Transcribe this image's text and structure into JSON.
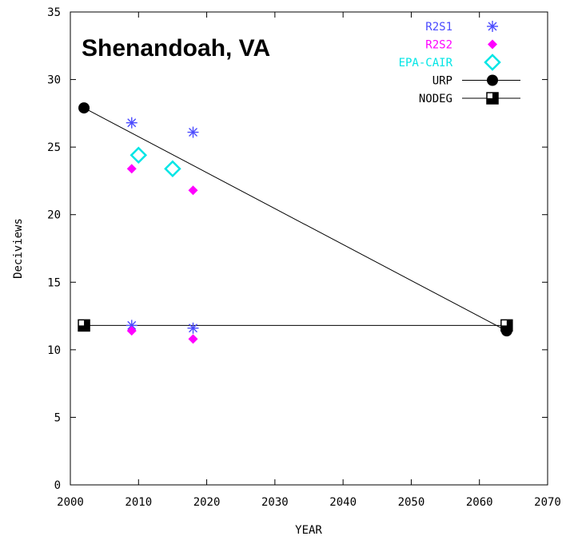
{
  "chart_data": {
    "type": "scatter",
    "title": "Shenandoah, VA",
    "xlabel": "YEAR",
    "ylabel": "Deciviews",
    "xlim": [
      2000,
      2070
    ],
    "ylim": [
      0,
      35
    ],
    "x_ticks": [
      "2000",
      "2010",
      "2020",
      "2030",
      "2040",
      "2050",
      "2060",
      "2070"
    ],
    "y_ticks": [
      "0",
      "5",
      "10",
      "15",
      "20",
      "25",
      "30",
      "35"
    ],
    "grid": false,
    "legend_position": "top-right",
    "series": [
      {
        "name": "R2S1",
        "marker": "asterisk",
        "color": "#4b4bff",
        "points": [
          [
            2009,
            26.8
          ],
          [
            2018,
            26.1
          ],
          [
            2009,
            11.8
          ],
          [
            2018,
            11.6
          ]
        ]
      },
      {
        "name": "R2S2",
        "marker": "diamond",
        "color": "#ff00ff",
        "points": [
          [
            2009,
            23.4
          ],
          [
            2018,
            21.8
          ],
          [
            2009,
            11.4
          ],
          [
            2018,
            10.8
          ]
        ]
      },
      {
        "name": "EPA-CAIR",
        "marker": "diamond-open",
        "color": "#00e5e5",
        "points": [
          [
            2010,
            24.4
          ],
          [
            2015,
            23.4
          ]
        ]
      },
      {
        "name": "URP",
        "marker": "circle-line",
        "color": "#000000",
        "points": [
          [
            2002,
            27.9
          ],
          [
            2064,
            11.4
          ]
        ]
      },
      {
        "name": "NODEG",
        "marker": "half-square-line",
        "color": "#000000",
        "points": [
          [
            2002,
            11.8
          ],
          [
            2064,
            11.8
          ]
        ]
      }
    ]
  }
}
